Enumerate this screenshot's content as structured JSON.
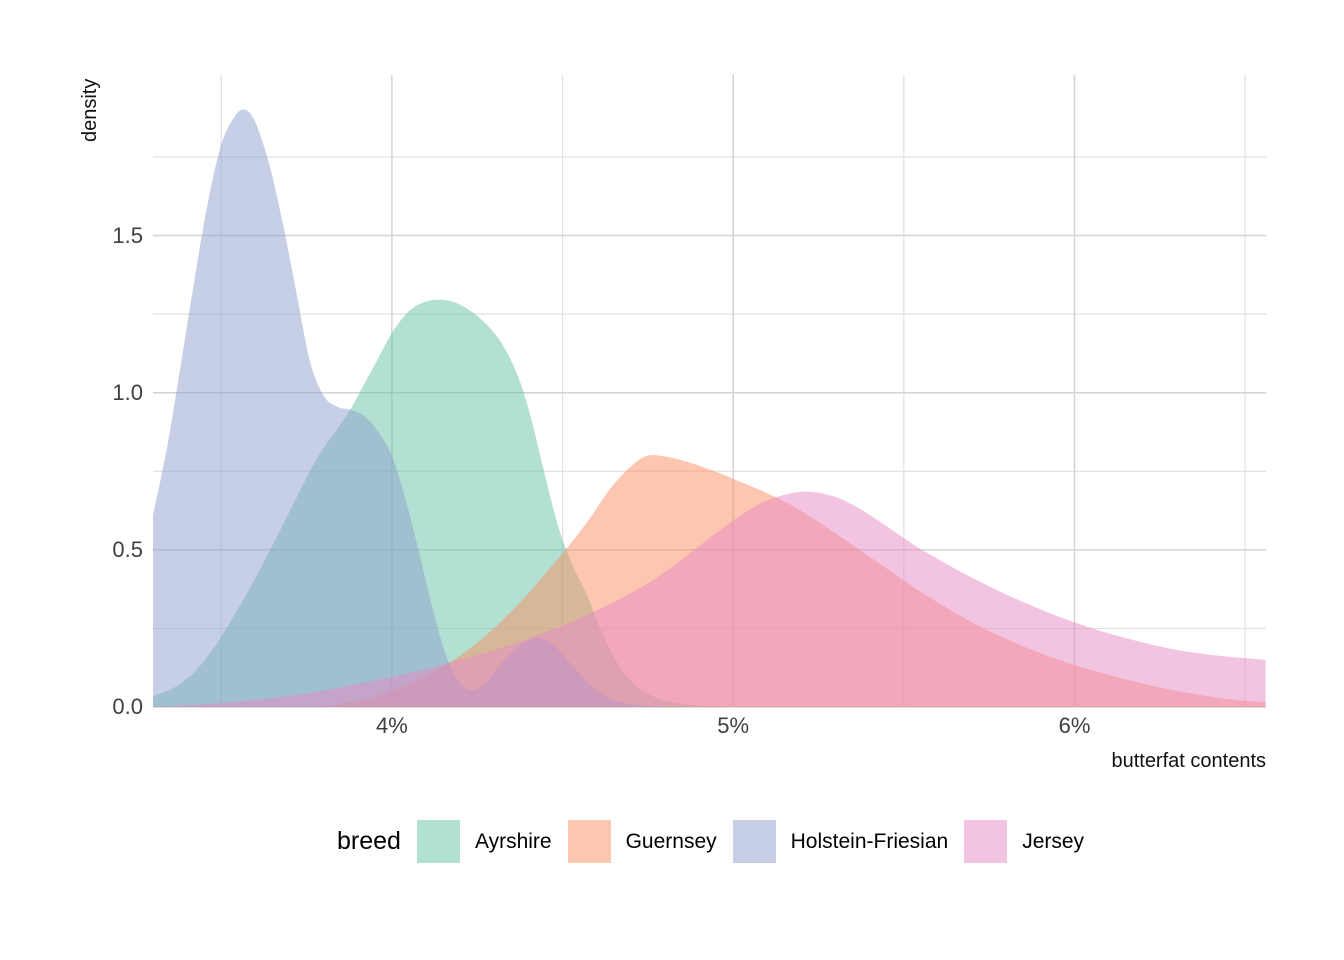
{
  "chart_data": {
    "type": "area",
    "subtype": "overlapping-density",
    "title": "",
    "xlabel": "butterfat contents",
    "ylabel": "density",
    "legend_title": "breed",
    "legend_position": "bottom",
    "grid": true,
    "xlim": [
      3.3,
      6.56
    ],
    "ylim": [
      0,
      2.0
    ],
    "fill_opacity": 0.5,
    "x_ticks": [
      {
        "value": 4,
        "label": "4%"
      },
      {
        "value": 5,
        "label": "5%"
      },
      {
        "value": 6,
        "label": "6%"
      }
    ],
    "y_ticks": [
      {
        "value": 0,
        "label": "0.0"
      },
      {
        "value": 0.5,
        "label": "0.5"
      },
      {
        "value": 1.0,
        "label": "1.0"
      },
      {
        "value": 1.5,
        "label": "1.5"
      }
    ],
    "x_minor": [
      3.5,
      4.5,
      5.5,
      6.5
    ],
    "y_minor": [
      0.25,
      0.75,
      1.25,
      1.75
    ],
    "series": [
      {
        "name": "Ayrshire",
        "color": "#66C2A5",
        "points": [
          [
            3.3,
            0.035
          ],
          [
            3.36,
            0.06
          ],
          [
            3.42,
            0.11
          ],
          [
            3.48,
            0.19
          ],
          [
            3.54,
            0.295
          ],
          [
            3.6,
            0.41
          ],
          [
            3.66,
            0.535
          ],
          [
            3.72,
            0.665
          ],
          [
            3.78,
            0.79
          ],
          [
            3.84,
            0.885
          ],
          [
            3.88,
            0.95
          ],
          [
            3.92,
            1.03
          ],
          [
            3.96,
            1.11
          ],
          [
            4.0,
            1.19
          ],
          [
            4.05,
            1.26
          ],
          [
            4.1,
            1.29
          ],
          [
            4.15,
            1.295
          ],
          [
            4.2,
            1.28
          ],
          [
            4.26,
            1.235
          ],
          [
            4.32,
            1.16
          ],
          [
            4.37,
            1.05
          ],
          [
            4.41,
            0.91
          ],
          [
            4.45,
            0.73
          ],
          [
            4.49,
            0.565
          ],
          [
            4.53,
            0.45
          ],
          [
            4.57,
            0.36
          ],
          [
            4.61,
            0.25
          ],
          [
            4.65,
            0.16
          ],
          [
            4.69,
            0.095
          ],
          [
            4.74,
            0.048
          ],
          [
            4.8,
            0.02
          ],
          [
            4.88,
            0.006
          ],
          [
            4.96,
            0.0
          ]
        ]
      },
      {
        "name": "Guernsey",
        "color": "#FC8D62",
        "points": [
          [
            3.78,
            0.0
          ],
          [
            3.86,
            0.012
          ],
          [
            3.94,
            0.03
          ],
          [
            4.02,
            0.06
          ],
          [
            4.1,
            0.1
          ],
          [
            4.17,
            0.142
          ],
          [
            4.24,
            0.196
          ],
          [
            4.31,
            0.262
          ],
          [
            4.38,
            0.338
          ],
          [
            4.45,
            0.425
          ],
          [
            4.52,
            0.515
          ],
          [
            4.58,
            0.6
          ],
          [
            4.64,
            0.695
          ],
          [
            4.7,
            0.765
          ],
          [
            4.75,
            0.8
          ],
          [
            4.81,
            0.795
          ],
          [
            4.88,
            0.775
          ],
          [
            4.95,
            0.748
          ],
          [
            5.02,
            0.717
          ],
          [
            5.09,
            0.685
          ],
          [
            5.16,
            0.648
          ],
          [
            5.23,
            0.603
          ],
          [
            5.3,
            0.552
          ],
          [
            5.38,
            0.493
          ],
          [
            5.46,
            0.433
          ],
          [
            5.54,
            0.373
          ],
          [
            5.63,
            0.313
          ],
          [
            5.72,
            0.258
          ],
          [
            5.82,
            0.207
          ],
          [
            5.92,
            0.163
          ],
          [
            6.02,
            0.127
          ],
          [
            6.13,
            0.094
          ],
          [
            6.25,
            0.062
          ],
          [
            6.37,
            0.038
          ],
          [
            6.48,
            0.022
          ],
          [
            6.56,
            0.015
          ]
        ]
      },
      {
        "name": "Holstein-Friesian",
        "color": "#8DA0CB",
        "points": [
          [
            3.3,
            0.61
          ],
          [
            3.34,
            0.82
          ],
          [
            3.38,
            1.08
          ],
          [
            3.42,
            1.35
          ],
          [
            3.46,
            1.6
          ],
          [
            3.5,
            1.79
          ],
          [
            3.54,
            1.88
          ],
          [
            3.57,
            1.9
          ],
          [
            3.6,
            1.86
          ],
          [
            3.64,
            1.73
          ],
          [
            3.68,
            1.54
          ],
          [
            3.72,
            1.32
          ],
          [
            3.76,
            1.1
          ],
          [
            3.8,
            0.99
          ],
          [
            3.84,
            0.955
          ],
          [
            3.88,
            0.945
          ],
          [
            3.92,
            0.925
          ],
          [
            3.96,
            0.875
          ],
          [
            4.0,
            0.8
          ],
          [
            4.04,
            0.66
          ],
          [
            4.08,
            0.49
          ],
          [
            4.12,
            0.31
          ],
          [
            4.16,
            0.16
          ],
          [
            4.2,
            0.075
          ],
          [
            4.24,
            0.055
          ],
          [
            4.28,
            0.085
          ],
          [
            4.33,
            0.15
          ],
          [
            4.38,
            0.2
          ],
          [
            4.43,
            0.22
          ],
          [
            4.48,
            0.19
          ],
          [
            4.53,
            0.13
          ],
          [
            4.58,
            0.07
          ],
          [
            4.63,
            0.032
          ],
          [
            4.68,
            0.013
          ],
          [
            4.74,
            0.004
          ],
          [
            4.8,
            0.0
          ]
        ]
      },
      {
        "name": "Jersey",
        "color": "#E78AC3",
        "points": [
          [
            3.32,
            0.002
          ],
          [
            3.44,
            0.008
          ],
          [
            3.56,
            0.018
          ],
          [
            3.68,
            0.032
          ],
          [
            3.8,
            0.052
          ],
          [
            3.92,
            0.078
          ],
          [
            4.04,
            0.106
          ],
          [
            4.16,
            0.138
          ],
          [
            4.28,
            0.175
          ],
          [
            4.4,
            0.218
          ],
          [
            4.52,
            0.268
          ],
          [
            4.64,
            0.328
          ],
          [
            4.76,
            0.4
          ],
          [
            4.86,
            0.478
          ],
          [
            4.96,
            0.562
          ],
          [
            5.06,
            0.636
          ],
          [
            5.14,
            0.672
          ],
          [
            5.22,
            0.685
          ],
          [
            5.3,
            0.668
          ],
          [
            5.38,
            0.625
          ],
          [
            5.46,
            0.567
          ],
          [
            5.54,
            0.508
          ],
          [
            5.63,
            0.452
          ],
          [
            5.72,
            0.4
          ],
          [
            5.82,
            0.348
          ],
          [
            5.92,
            0.302
          ],
          [
            6.02,
            0.262
          ],
          [
            6.12,
            0.228
          ],
          [
            6.22,
            0.2
          ],
          [
            6.32,
            0.178
          ],
          [
            6.44,
            0.161
          ],
          [
            6.56,
            0.15
          ]
        ]
      }
    ]
  },
  "style": {
    "grid_major_color": "#d3d3d3",
    "grid_minor_color": "#e1e1e1",
    "tick_text_color": "#404040",
    "title_text_color": "#111111",
    "background": "#ffffff"
  }
}
